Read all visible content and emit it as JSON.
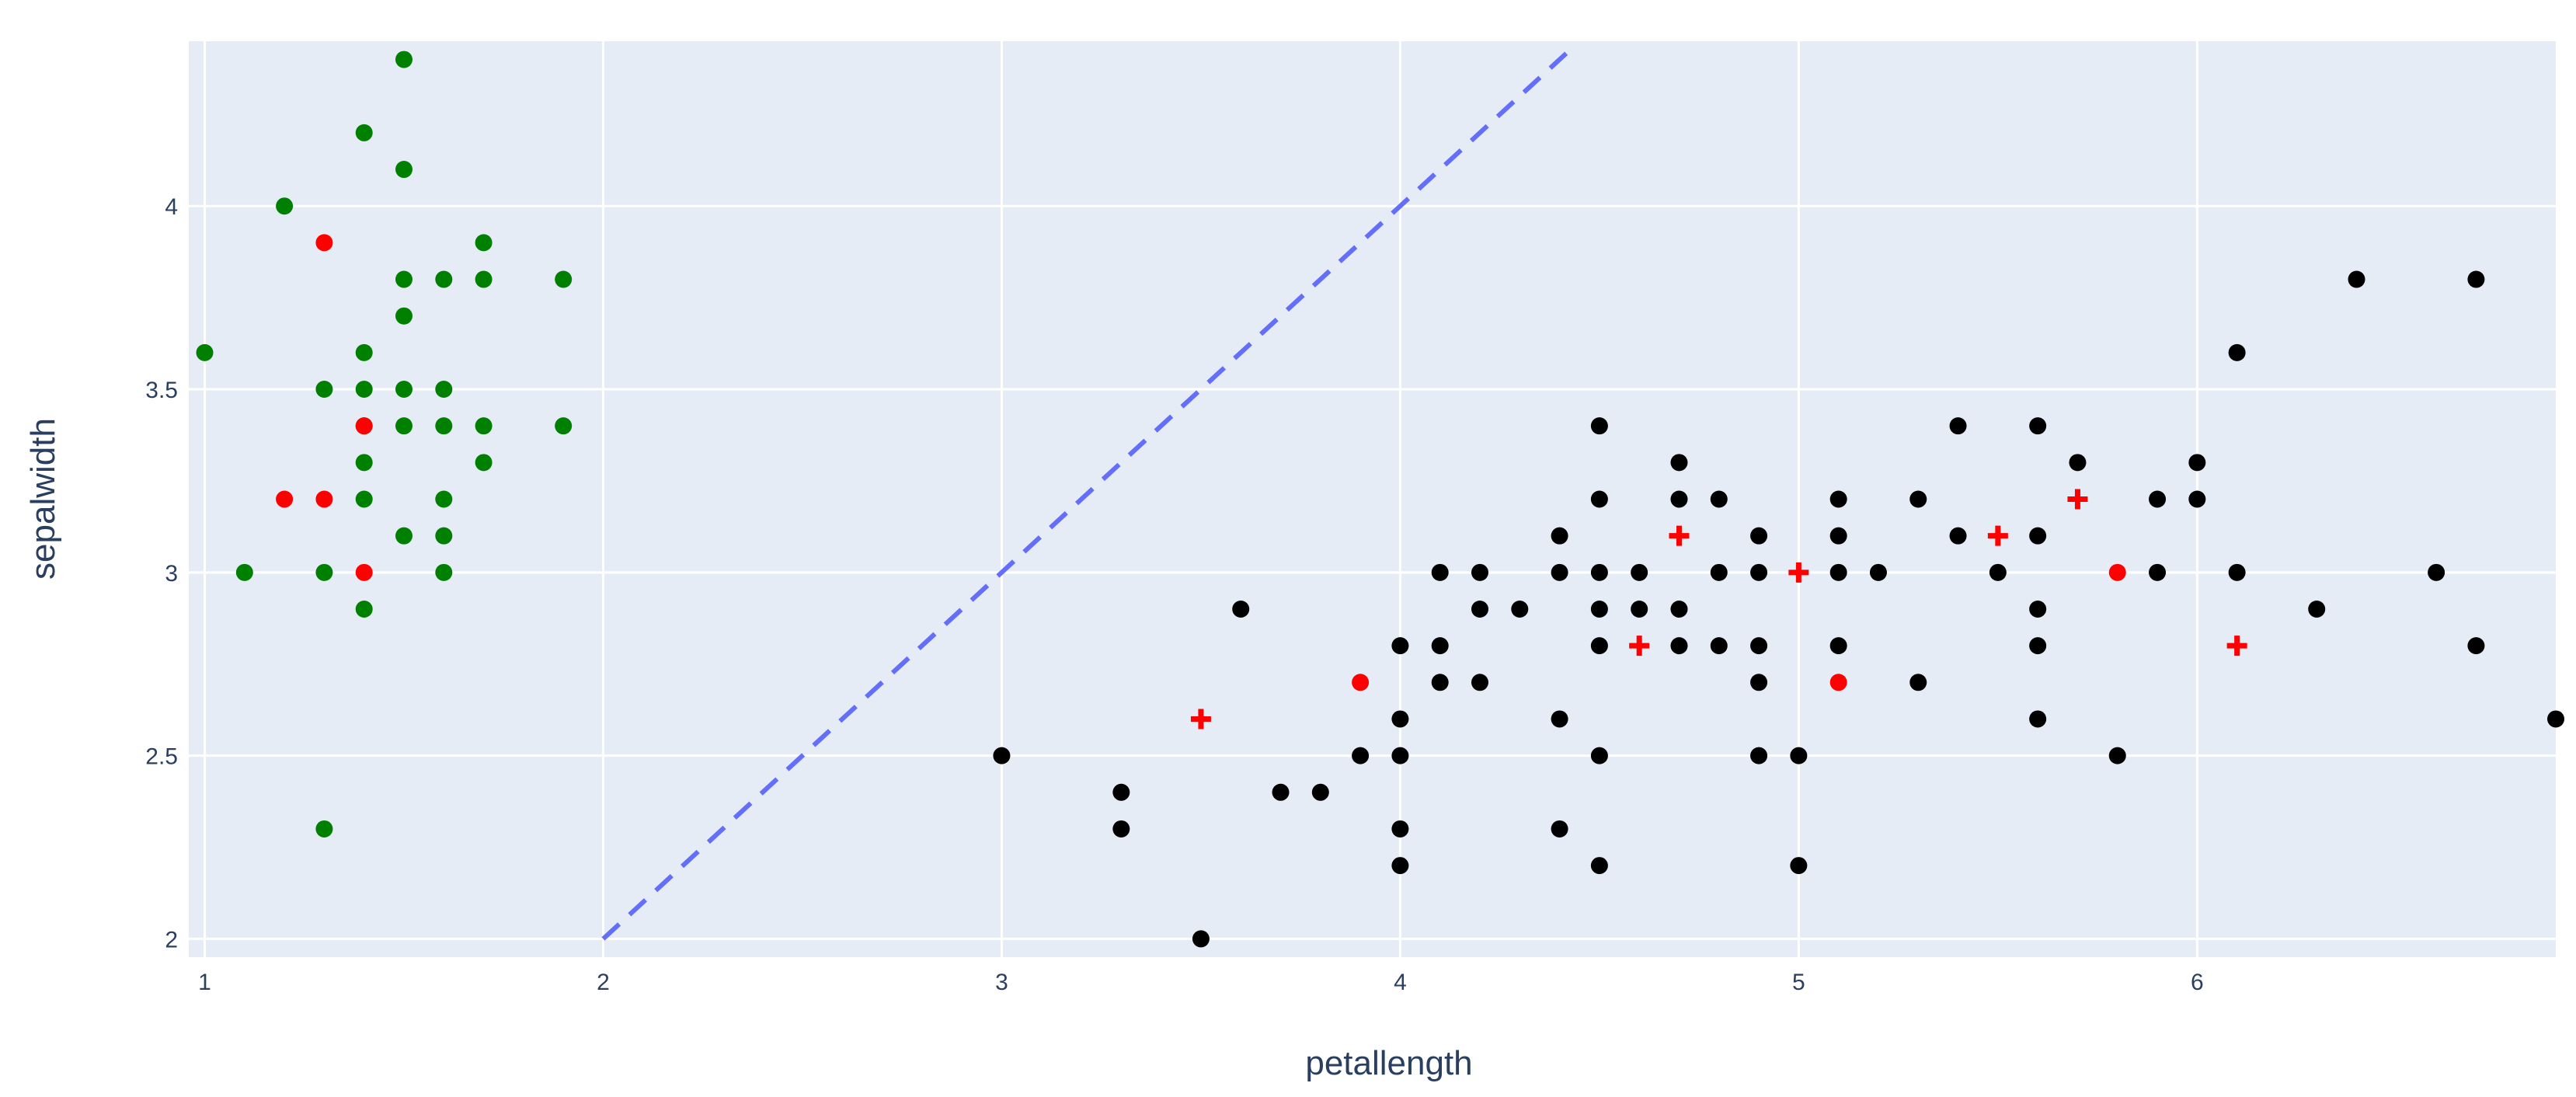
{
  "chart_data": {
    "type": "scatter",
    "xlabel": "petallength",
    "ylabel": "sepalwidth",
    "xlim": [
      0.96,
      6.9
    ],
    "ylim": [
      1.95,
      4.45
    ],
    "x_ticks": [
      1,
      2,
      3,
      4,
      5,
      6
    ],
    "y_ticks": [
      2,
      2.5,
      3,
      3.5,
      4
    ],
    "grid": true,
    "legend": "none",
    "colors": {
      "plot_bg": "#e5ecf6",
      "grid": "#ffffff",
      "line": "#636efa",
      "cluster_a": "#008000",
      "cluster_b": "#000000",
      "highlight": "#ff0000"
    },
    "reference_line": {
      "style": "dashed",
      "x": [
        2.0,
        4.42
      ],
      "y": [
        2.0,
        4.42
      ]
    },
    "series": [
      {
        "color": "#008000",
        "marker": "circle",
        "points": [
          [
            1.0,
            3.6
          ],
          [
            1.1,
            3.0
          ],
          [
            1.2,
            4.0
          ],
          [
            1.3,
            3.5
          ],
          [
            1.3,
            3.0
          ],
          [
            1.3,
            2.3
          ],
          [
            1.4,
            4.2
          ],
          [
            1.4,
            3.6
          ],
          [
            1.4,
            3.5
          ],
          [
            1.4,
            3.4
          ],
          [
            1.4,
            3.3
          ],
          [
            1.4,
            3.2
          ],
          [
            1.4,
            2.9
          ],
          [
            1.5,
            4.4
          ],
          [
            1.5,
            4.1
          ],
          [
            1.5,
            3.8
          ],
          [
            1.5,
            3.7
          ],
          [
            1.5,
            3.5
          ],
          [
            1.5,
            3.4
          ],
          [
            1.5,
            3.1
          ],
          [
            1.6,
            3.8
          ],
          [
            1.6,
            3.5
          ],
          [
            1.6,
            3.4
          ],
          [
            1.6,
            3.2
          ],
          [
            1.6,
            3.1
          ],
          [
            1.6,
            3.0
          ],
          [
            1.7,
            3.9
          ],
          [
            1.7,
            3.8
          ],
          [
            1.7,
            3.4
          ],
          [
            1.7,
            3.3
          ],
          [
            1.9,
            3.8
          ],
          [
            1.9,
            3.4
          ]
        ]
      },
      {
        "color": "#ff0000",
        "marker": "circle",
        "points": [
          [
            1.2,
            3.2
          ],
          [
            1.3,
            3.9
          ],
          [
            1.3,
            3.2
          ],
          [
            1.4,
            3.4
          ],
          [
            1.4,
            3.0
          ],
          [
            3.9,
            2.7
          ],
          [
            5.1,
            2.7
          ],
          [
            5.8,
            3.0
          ]
        ]
      },
      {
        "color": "#000000",
        "marker": "circle",
        "points": [
          [
            3.0,
            2.5
          ],
          [
            3.3,
            2.4
          ],
          [
            3.3,
            2.3
          ],
          [
            3.5,
            2.0
          ],
          [
            3.6,
            2.9
          ],
          [
            3.7,
            2.4
          ],
          [
            3.8,
            2.4
          ],
          [
            3.9,
            2.5
          ],
          [
            4.0,
            2.8
          ],
          [
            4.0,
            2.6
          ],
          [
            4.0,
            2.5
          ],
          [
            4.0,
            2.3
          ],
          [
            4.0,
            2.2
          ],
          [
            4.1,
            3.0
          ],
          [
            4.1,
            2.8
          ],
          [
            4.1,
            2.7
          ],
          [
            4.2,
            3.0
          ],
          [
            4.2,
            2.9
          ],
          [
            4.2,
            2.7
          ],
          [
            4.3,
            2.9
          ],
          [
            4.4,
            3.1
          ],
          [
            4.4,
            3.0
          ],
          [
            4.4,
            2.6
          ],
          [
            4.4,
            2.3
          ],
          [
            4.5,
            3.4
          ],
          [
            4.5,
            3.2
          ],
          [
            4.5,
            3.0
          ],
          [
            4.5,
            2.9
          ],
          [
            4.5,
            2.8
          ],
          [
            4.5,
            2.5
          ],
          [
            4.5,
            2.2
          ],
          [
            4.6,
            3.0
          ],
          [
            4.6,
            2.9
          ],
          [
            4.7,
            3.3
          ],
          [
            4.7,
            3.2
          ],
          [
            4.7,
            2.9
          ],
          [
            4.7,
            2.8
          ],
          [
            4.8,
            3.2
          ],
          [
            4.8,
            3.0
          ],
          [
            4.8,
            2.8
          ],
          [
            4.9,
            3.1
          ],
          [
            4.9,
            3.0
          ],
          [
            4.9,
            2.8
          ],
          [
            4.9,
            2.7
          ],
          [
            4.9,
            2.5
          ],
          [
            5.0,
            2.5
          ],
          [
            5.0,
            2.2
          ],
          [
            5.1,
            3.2
          ],
          [
            5.1,
            3.1
          ],
          [
            5.1,
            3.0
          ],
          [
            5.1,
            2.8
          ],
          [
            5.2,
            3.0
          ],
          [
            5.3,
            3.2
          ],
          [
            5.3,
            2.7
          ],
          [
            5.4,
            3.4
          ],
          [
            5.4,
            3.1
          ],
          [
            5.5,
            3.0
          ],
          [
            5.6,
            3.4
          ],
          [
            5.6,
            3.1
          ],
          [
            5.6,
            2.9
          ],
          [
            5.6,
            2.8
          ],
          [
            5.6,
            2.6
          ],
          [
            5.7,
            3.3
          ],
          [
            5.8,
            2.5
          ],
          [
            5.9,
            3.2
          ],
          [
            5.9,
            3.0
          ],
          [
            6.0,
            3.3
          ],
          [
            6.0,
            3.2
          ],
          [
            6.1,
            3.6
          ],
          [
            6.1,
            3.0
          ],
          [
            6.3,
            2.9
          ],
          [
            6.4,
            3.8
          ],
          [
            6.6,
            3.0
          ],
          [
            6.7,
            3.8
          ],
          [
            6.7,
            2.8
          ],
          [
            6.9,
            2.6
          ]
        ]
      },
      {
        "color": "#ff0000",
        "marker": "cross",
        "points": [
          [
            3.5,
            2.6
          ],
          [
            4.6,
            2.8
          ],
          [
            4.7,
            3.1
          ],
          [
            5.0,
            3.0
          ],
          [
            5.5,
            3.1
          ],
          [
            5.7,
            3.2
          ],
          [
            6.1,
            2.8
          ]
        ]
      }
    ]
  }
}
